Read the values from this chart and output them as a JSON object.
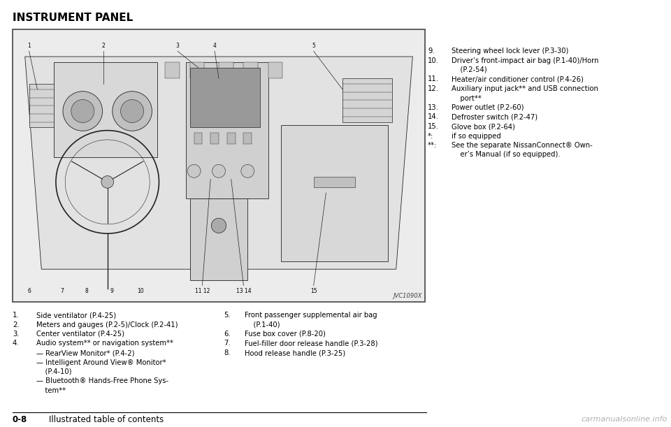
{
  "title": "INSTRUMENT PANEL",
  "title_fontsize": 11,
  "bg_color": "#ffffff",
  "image_caption": "JVC1090X",
  "left_items": [
    {
      "num": "1.",
      "text": "Side ventilator (P.4-25)"
    },
    {
      "num": "2.",
      "text": "Meters and gauges (P.2-5)/Clock (P.2-41)"
    },
    {
      "num": "3.",
      "text": "Center ventilator (P.4-25)"
    },
    {
      "num": "4.",
      "text": "Audio system** or navigation system**"
    },
    {
      "num": "",
      "text": "— RearView Monitor* (P.4-2)"
    },
    {
      "num": "",
      "text": "— Intelligent Around View® Monitor*"
    },
    {
      "num": "",
      "text": "    (P.4-10)"
    },
    {
      "num": "",
      "text": "— Bluetooth® Hands-Free Phone Sys-"
    },
    {
      "num": "",
      "text": "    tem**"
    }
  ],
  "mid_items": [
    {
      "num": "5.",
      "text": "Front passenger supplemental air bag"
    },
    {
      "num": "",
      "text": "    (P.1-40)"
    },
    {
      "num": "6.",
      "text": "Fuse box cover (P.8-20)"
    },
    {
      "num": "7.",
      "text": "Fuel-filler door release handle (P.3-28)"
    },
    {
      "num": "8.",
      "text": "Hood release handle (P.3-25)"
    }
  ],
  "right_items": [
    {
      "num": "9.",
      "text": "Steering wheel lock lever (P.3-30)"
    },
    {
      "num": "10.",
      "text": "Driver’s front-impact air bag (P.1-40)/Horn"
    },
    {
      "num": "",
      "text": "    (P.2-54)"
    },
    {
      "num": "11.",
      "text": "Heater/air conditioner control (P.4-26)"
    },
    {
      "num": "12.",
      "text": "Auxiliary input jack** and USB connection"
    },
    {
      "num": "",
      "text": "    port**"
    },
    {
      "num": "13.",
      "text": "Power outlet (P.2-60)"
    },
    {
      "num": "14.",
      "text": "Defroster switch (P.2-47)"
    },
    {
      "num": "15.",
      "text": "Glove box (P.2-64)"
    },
    {
      "num": "*:",
      "text": "if so equipped"
    },
    {
      "num": "**:",
      "text": "See the separate NissanConnect® Own-"
    },
    {
      "num": "",
      "text": "    er’s Manual (if so equipped)."
    }
  ],
  "footer_left": "0-8",
  "footer_right": "Illustrated table of contents",
  "watermark": "carmanualsonline.info"
}
